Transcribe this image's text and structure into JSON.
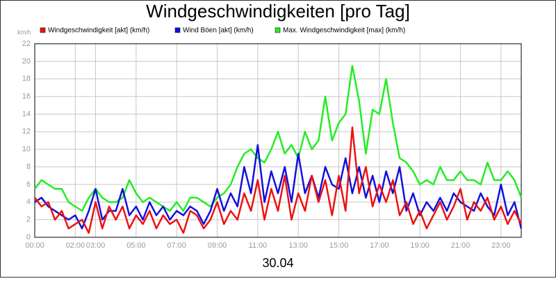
{
  "chart_data": {
    "type": "line",
    "title": "Windgeschwindigkeiten [pro Tag]",
    "ylabel": "km/h",
    "xlabel": "30.04",
    "x": [
      0,
      20,
      40,
      60,
      80,
      100,
      120,
      140,
      160,
      180,
      200,
      220,
      240,
      260,
      280,
      300,
      320,
      340,
      360,
      380,
      400,
      420,
      440,
      460,
      480,
      500,
      520,
      540,
      560,
      580,
      600,
      620,
      640,
      660,
      680,
      700,
      720,
      740,
      760,
      780,
      800,
      820,
      840,
      860,
      880,
      900,
      920,
      940,
      960,
      980,
      1000,
      1020,
      1040,
      1060,
      1080,
      1100,
      1120,
      1140,
      1160,
      1180,
      1200,
      1220,
      1240,
      1260,
      1280,
      1300,
      1320,
      1340,
      1360,
      1380,
      1400,
      1420,
      1440
    ],
    "xlim": [
      0,
      1440
    ],
    "xticks": [
      {
        "value": 0,
        "label": "00:00"
      },
      {
        "value": 120,
        "label": "02:00"
      },
      {
        "value": 180,
        "label": "03:00"
      },
      {
        "value": 300,
        "label": "05:00"
      },
      {
        "value": 420,
        "label": "07:00"
      },
      {
        "value": 540,
        "label": "09:00"
      },
      {
        "value": 660,
        "label": "11:00"
      },
      {
        "value": 780,
        "label": "13:00"
      },
      {
        "value": 900,
        "label": "15:00"
      },
      {
        "value": 1020,
        "label": "17:00"
      },
      {
        "value": 1140,
        "label": "19:00"
      },
      {
        "value": 1260,
        "label": "21:00"
      },
      {
        "value": 1380,
        "label": "23:00"
      }
    ],
    "ylim": [
      0,
      22
    ],
    "yticks": [
      0,
      2,
      4,
      6,
      8,
      10,
      12,
      14,
      16,
      18,
      20,
      22
    ],
    "grid": true,
    "series": [
      {
        "name": "Windgeschwindigkeit [akt] (km/h)",
        "color": "#ee1111",
        "values": [
          4.5,
          3.5,
          4,
          2,
          3,
          1,
          1.5,
          2,
          0.5,
          4,
          1,
          3.5,
          2,
          3.5,
          1,
          2.5,
          1.5,
          3,
          1,
          2.5,
          1.5,
          2,
          0.5,
          3,
          2.5,
          1,
          2,
          4,
          1.5,
          3,
          2,
          5,
          3,
          6.5,
          2,
          5.5,
          3,
          7,
          2,
          5,
          3,
          7,
          4,
          6.5,
          2.5,
          7,
          3,
          12.5,
          5,
          8,
          3.5,
          6,
          4,
          6.5,
          2.5,
          4,
          1.5,
          3,
          1,
          2.5,
          4,
          2,
          3.5,
          5.5,
          2,
          4,
          3,
          4.5,
          2,
          3.5,
          1.5,
          3,
          1.5
        ]
      },
      {
        "name": "Wind Böen [akt] (km/h)",
        "color": "#1111dd",
        "values": [
          4,
          4.5,
          3.5,
          3,
          2.5,
          2,
          2.5,
          1,
          3,
          5.5,
          2,
          3,
          3,
          5.5,
          2.5,
          3.5,
          2,
          4,
          2.5,
          3.5,
          2,
          3,
          2.5,
          3.5,
          3,
          1.5,
          3,
          5.5,
          3,
          5,
          3.5,
          8,
          5,
          10.5,
          4,
          7.5,
          5,
          8,
          4,
          9.5,
          5,
          7,
          4.5,
          8,
          6,
          5.5,
          9,
          5,
          8,
          4.5,
          7,
          4,
          7.5,
          5,
          8,
          3,
          5,
          2.5,
          4,
          3,
          4.5,
          3,
          5,
          4,
          3.5,
          3,
          5,
          3.5,
          2.5,
          6,
          2.5,
          4,
          1
        ]
      },
      {
        "name": "Max. Windgeschwindigkeit [max] (km/h)",
        "color": "#22ee22",
        "values": [
          5.5,
          6.5,
          6,
          5.5,
          5.5,
          4,
          3.5,
          3,
          4.5,
          5.5,
          4.5,
          4,
          4,
          4.5,
          6.5,
          5,
          4,
          4.5,
          4,
          3.5,
          3,
          4,
          3,
          4.5,
          4.5,
          4,
          3.5,
          4.5,
          5,
          6,
          8,
          9.5,
          10,
          9,
          8.5,
          10,
          12,
          9.5,
          10.5,
          9,
          12,
          10,
          11,
          16,
          11,
          13,
          14,
          19.5,
          15.5,
          9.5,
          14.5,
          14,
          18,
          13,
          9,
          8.5,
          7.5,
          6,
          6.5,
          6,
          8,
          6.5,
          6.5,
          7.5,
          6.5,
          6.5,
          6,
          8.5,
          6.5,
          6.5,
          7.5,
          6.5,
          4.5
        ]
      }
    ]
  }
}
